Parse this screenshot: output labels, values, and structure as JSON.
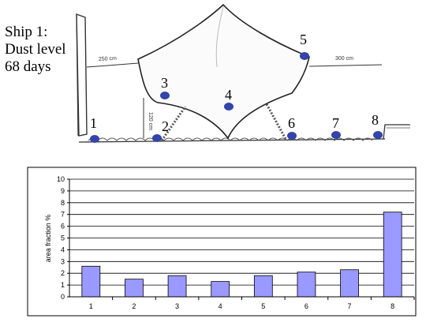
{
  "caption": {
    "line1": "Ship 1:",
    "line2": "Dust level",
    "line3": "68 days"
  },
  "sketch": {
    "dim_left": "250 cm",
    "dim_right": "300 cm",
    "dim_height": "120 cm",
    "points": [
      "1",
      "2",
      "3",
      "4",
      "5",
      "6",
      "7",
      "8"
    ],
    "point_color": "#3344aa"
  },
  "chart_data": {
    "type": "bar",
    "categories": [
      "1",
      "2",
      "3",
      "4",
      "5",
      "6",
      "7",
      "8"
    ],
    "values": [
      2.6,
      1.5,
      1.8,
      1.3,
      1.8,
      2.1,
      2.3,
      7.2
    ],
    "ylabel": "area fraction %",
    "ylim": [
      0,
      10
    ],
    "yticks": [
      "0",
      "1",
      "2",
      "3",
      "4",
      "5",
      "6",
      "7",
      "8",
      "9",
      "10"
    ],
    "grid": true,
    "bar_color": "#9999ff"
  }
}
